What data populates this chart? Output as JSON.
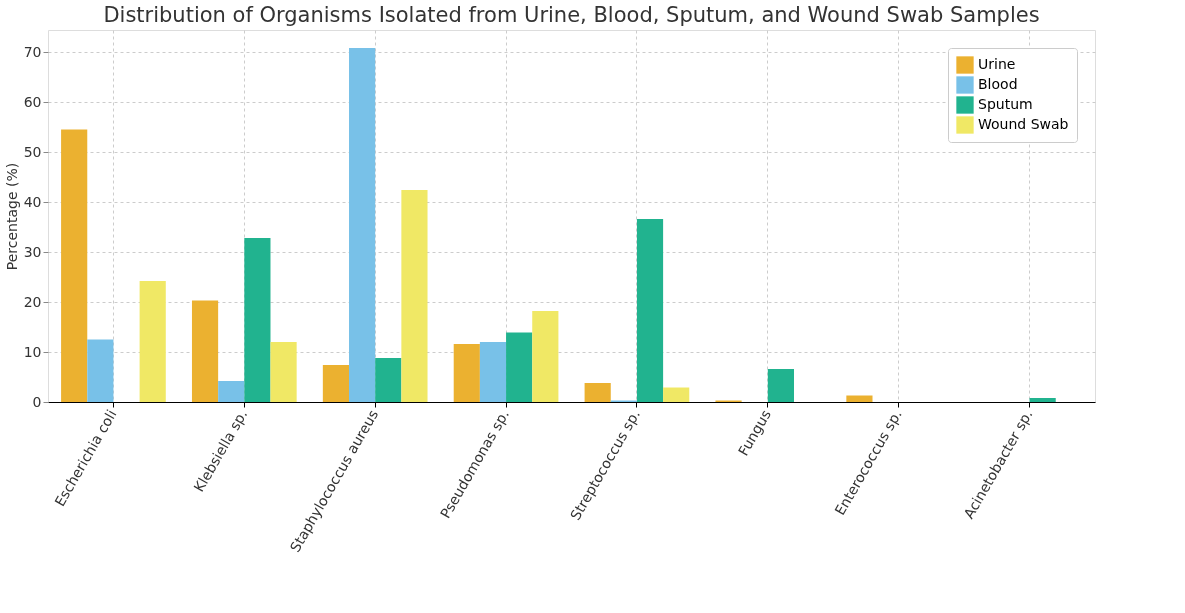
{
  "chart_data": {
    "type": "bar",
    "title": "Distribution of Organisms Isolated from Urine, Blood, Sputum, and Wound Swab Samples",
    "ylabel": "Percentage (%)",
    "categories": [
      "Escherichia coli",
      "Klebsiella sp.",
      "Staphylococcus aureus",
      "Pseudomonas sp.",
      "Streptococcus sp.",
      "Fungus",
      "Enterococcus sp.",
      "Acinetobacter sp."
    ],
    "series": [
      {
        "name": "Urine",
        "color": "#ebb130",
        "values": [
          54.5,
          20.3,
          7.4,
          11.6,
          3.8,
          0.3,
          1.3,
          0
        ]
      },
      {
        "name": "Blood",
        "color": "#78c1e8",
        "values": [
          12.5,
          4.2,
          70.8,
          12.0,
          0.3,
          0,
          0,
          0
        ]
      },
      {
        "name": "Sputum",
        "color": "#21b38f",
        "values": [
          0,
          32.8,
          8.8,
          13.9,
          36.6,
          6.6,
          0,
          0.8
        ]
      },
      {
        "name": "Wound Swab",
        "color": "#f0e865",
        "values": [
          24.2,
          12.0,
          42.4,
          18.2,
          2.9,
          0,
          0,
          0
        ]
      }
    ],
    "ylim": [
      0,
      74.4
    ],
    "yticks": [
      0,
      10,
      20,
      30,
      40,
      50,
      60,
      70
    ],
    "grid": true,
    "legend": "top right"
  }
}
